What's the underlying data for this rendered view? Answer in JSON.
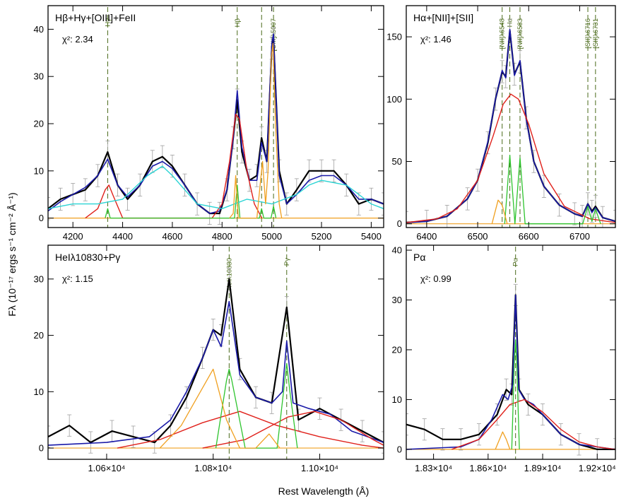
{
  "figure": {
    "xlabel": "Rest Wavelength (Å)",
    "ylabel": "Fλ  (10⁻¹⁷ ergs s⁻¹ cm⁻² Å⁻¹)"
  },
  "colors": {
    "data": "#000000",
    "errorbars": "#a0a0a0",
    "total_model": "#1a1aa8",
    "broad": "#e0201a",
    "narrow": "#2ec42e",
    "feii": "#2ad4d4",
    "oiii_wing": "#f0a020",
    "marker": "#4a6a1a"
  },
  "chart_data": [
    {
      "type": "line",
      "title": "Hβ+Hγ+[OIII]+FeII",
      "chi2_label": "χ²: 2.34",
      "xlim": [
        4100,
        5450
      ],
      "ylim": [
        -2,
        45
      ],
      "xticks": [
        4200,
        4400,
        4600,
        4800,
        5000,
        5200,
        5400
      ],
      "xtick_labels": [
        "4200",
        "4400",
        "4600",
        "4800",
        "5000",
        "5200",
        "5400"
      ],
      "yticks": [
        0,
        10,
        20,
        30,
        40
      ],
      "ytick_labels": [
        "0",
        "10",
        "20",
        "30",
        "40"
      ],
      "markers": [
        {
          "x": 4340,
          "label": "Hγ"
        },
        {
          "x": 4861,
          "label": "Hβ"
        },
        {
          "x": 4959,
          "label": ""
        },
        {
          "x": 5007,
          "label": "[OIII]λ5007"
        }
      ],
      "series": [
        {
          "role": "data",
          "x": [
            4100,
            4150,
            4200,
            4250,
            4300,
            4340,
            4380,
            4420,
            4470,
            4520,
            4560,
            4600,
            4650,
            4700,
            4750,
            4790,
            4820,
            4845,
            4861,
            4880,
            4910,
            4940,
            4959,
            4980,
            5000,
            5007,
            5030,
            5060,
            5100,
            5150,
            5200,
            5250,
            5300,
            5350,
            5400,
            5450
          ],
          "values": [
            2,
            4,
            5,
            6,
            9,
            14,
            7,
            4,
            7,
            12,
            13,
            11,
            7,
            3,
            1,
            1,
            6,
            17,
            25,
            14,
            8,
            9,
            17,
            12,
            36,
            38,
            10,
            3,
            6,
            10,
            10,
            10,
            7,
            3,
            4,
            3
          ]
        },
        {
          "role": "total",
          "x": [
            4100,
            4150,
            4200,
            4250,
            4300,
            4340,
            4380,
            4420,
            4470,
            4520,
            4560,
            4600,
            4650,
            4700,
            4750,
            4790,
            4820,
            4845,
            4861,
            4880,
            4910,
            4940,
            4959,
            4980,
            5000,
            5007,
            5030,
            5060,
            5100,
            5150,
            5200,
            5250,
            5300,
            5350,
            5400,
            5450
          ],
          "values": [
            1.5,
            3.5,
            5,
            6.5,
            9,
            12.5,
            7,
            4.5,
            7,
            11,
            12,
            10.5,
            7,
            3,
            1,
            1.5,
            6,
            17,
            27,
            15,
            8,
            8,
            16,
            12,
            37,
            39,
            9,
            3,
            5,
            8,
            9,
            9,
            7,
            4,
            4,
            3
          ]
        },
        {
          "role": "broad",
          "x": [
            4250,
            4300,
            4330,
            4345,
            4360,
            4400,
            4760,
            4800,
            4830,
            4855,
            4870,
            4900,
            4930,
            4960
          ],
          "values": [
            0,
            2,
            6,
            7,
            5,
            0,
            0,
            3,
            12,
            22,
            21,
            10,
            3,
            0
          ]
        },
        {
          "role": "narrow",
          "x": [
            4330,
            4340,
            4350,
            4850,
            4861,
            4872,
            4950,
            4959,
            4968,
            4997,
            5007,
            5017
          ],
          "values": [
            0,
            2,
            0,
            0,
            7,
            0,
            0,
            2,
            0,
            0,
            2.5,
            0
          ]
        },
        {
          "role": "feii",
          "x": [
            4100,
            4200,
            4300,
            4400,
            4500,
            4560,
            4600,
            4700,
            4800,
            4900,
            5000,
            5100,
            5150,
            5200,
            5300,
            5400,
            5450
          ],
          "values": [
            2,
            3,
            3,
            4,
            9,
            11,
            9,
            3,
            2,
            4,
            3,
            5,
            7,
            8,
            7,
            3,
            2
          ]
        },
        {
          "role": "oiii_wing",
          "x": [
            4830,
            4845,
            4855,
            4865,
            4940,
            4955,
            4963,
            4975,
            4985,
            4998,
            5005,
            5015,
            5030,
            5040
          ],
          "values": [
            0,
            1,
            9,
            0,
            0,
            8,
            12,
            3,
            10,
            34,
            37,
            20,
            3,
            0
          ]
        }
      ]
    },
    {
      "type": "line",
      "title": "Hα+[NII]+[SII]",
      "chi2_label": "χ²: 1.46",
      "xlim": [
        6360,
        6770
      ],
      "ylim": [
        -3,
        175
      ],
      "xticks": [
        6400,
        6500,
        6600,
        6700
      ],
      "xtick_labels": [
        "6400",
        "6500",
        "6600",
        "6700"
      ],
      "yticks": [
        0,
        50,
        100,
        150
      ],
      "ytick_labels": [
        "0",
        "50",
        "100",
        "150"
      ],
      "markers": [
        {
          "x": 6548,
          "label": "[NII]λ6548"
        },
        {
          "x": 6563,
          "label": "Hα"
        },
        {
          "x": 6583,
          "label": "[NII]λ6583"
        },
        {
          "x": 6716,
          "label": "[SII]λ6716"
        },
        {
          "x": 6731,
          "label": "[SII]λ6731"
        }
      ],
      "series": [
        {
          "role": "data",
          "x": [
            6360,
            6400,
            6440,
            6480,
            6500,
            6520,
            6535,
            6548,
            6555,
            6563,
            6572,
            6583,
            6595,
            6610,
            6630,
            6660,
            6690,
            6705,
            6716,
            6724,
            6731,
            6745,
            6770
          ],
          "values": [
            1,
            2,
            6,
            20,
            35,
            65,
            100,
            122,
            118,
            155,
            120,
            130,
            85,
            50,
            30,
            15,
            8,
            6,
            16,
            10,
            14,
            5,
            2
          ]
        },
        {
          "role": "total",
          "x": [
            6360,
            6400,
            6440,
            6480,
            6500,
            6520,
            6535,
            6548,
            6555,
            6563,
            6572,
            6583,
            6595,
            6610,
            6630,
            6660,
            6690,
            6705,
            6716,
            6724,
            6731,
            6745,
            6770
          ],
          "values": [
            1,
            2,
            6,
            20,
            35,
            66,
            100,
            123,
            117,
            156,
            119,
            131,
            84,
            50,
            30,
            15,
            8,
            6,
            16,
            9,
            13,
            5,
            2
          ]
        },
        {
          "role": "broad",
          "x": [
            6360,
            6420,
            6460,
            6500,
            6530,
            6550,
            6565,
            6580,
            6600,
            6630,
            6670,
            6720,
            6770
          ],
          "values": [
            1,
            4,
            12,
            35,
            70,
            96,
            104,
            100,
            80,
            40,
            14,
            4,
            1
          ]
        },
        {
          "role": "narrow",
          "x": [
            6553,
            6563,
            6573,
            6573,
            6583,
            6593,
            6706,
            6716,
            6724,
            6731,
            6741
          ],
          "values": [
            0,
            55,
            0,
            0,
            53,
            0,
            0,
            14,
            2,
            12,
            0
          ]
        },
        {
          "role": "oiii_wing",
          "x": [
            6528,
            6540,
            6548,
            6558
          ],
          "values": [
            0,
            19,
            15,
            0
          ]
        }
      ]
    },
    {
      "type": "line",
      "title": "HeIλ10830+Pγ",
      "chi2_label": "χ²: 1.15",
      "xlim": [
        10490,
        11120
      ],
      "ylim": [
        -2,
        36
      ],
      "xticks": [
        10600,
        10800,
        11000
      ],
      "xtick_labels": [
        "1.06×10⁴",
        "1.08×10⁴",
        "1.10×10⁴"
      ],
      "yticks": [
        0,
        10,
        20,
        30
      ],
      "ytick_labels": [
        "0",
        "10",
        "20",
        "30"
      ],
      "markers": [
        {
          "x": 10830,
          "label": "HeIλ10830"
        },
        {
          "x": 10938,
          "label": "Pγ"
        }
      ],
      "series": [
        {
          "role": "data",
          "x": [
            10490,
            10530,
            10570,
            10610,
            10650,
            10690,
            10720,
            10750,
            10780,
            10800,
            10815,
            10830,
            10850,
            10880,
            10910,
            10938,
            10960,
            11000,
            11040,
            11080,
            11120
          ],
          "values": [
            2,
            4,
            1,
            3,
            2,
            1,
            4,
            9,
            16,
            21,
            20,
            30,
            14,
            9,
            8,
            25,
            5,
            7,
            5,
            3,
            1
          ]
        },
        {
          "role": "total",
          "x": [
            10490,
            10600,
            10680,
            10720,
            10750,
            10780,
            10800,
            10815,
            10830,
            10850,
            10880,
            10910,
            10930,
            10938,
            10950,
            10980,
            11020,
            11060,
            11120
          ],
          "values": [
            0.5,
            1,
            2,
            5,
            10,
            16,
            21,
            18,
            26,
            13,
            9,
            8,
            10,
            19,
            8,
            7,
            6,
            3,
            1
          ]
        },
        {
          "role": "broad",
          "x": [
            10620,
            10700,
            10780,
            10850,
            10920,
            11000,
            11080,
            11120
          ],
          "values": [
            0,
            1.5,
            4.5,
            6.5,
            4,
            2,
            0.5,
            0
          ]
        },
        {
          "role": "broad",
          "x": [
            10780,
            10860,
            10940,
            10990,
            11040,
            11100,
            11120
          ],
          "values": [
            0,
            1.5,
            5.5,
            6.5,
            5,
            1.5,
            0.5
          ]
        },
        {
          "role": "narrow",
          "x": [
            10805,
            10825,
            10830,
            10835,
            10860,
            10920,
            10932,
            10938,
            10944,
            10958
          ],
          "values": [
            0,
            12,
            14,
            12,
            0,
            0,
            10,
            15,
            10,
            0
          ]
        },
        {
          "role": "oiii_wing",
          "x": [
            10700,
            10740,
            10770,
            10800,
            10825,
            10850,
            10880,
            10905,
            10925
          ],
          "values": [
            0,
            4,
            9,
            14,
            5,
            0,
            0,
            2.5,
            0
          ]
        }
      ]
    },
    {
      "type": "line",
      "title": "Pα",
      "chi2_label": "χ²: 0.99",
      "xlim": [
        18150,
        19300
      ],
      "ylim": [
        -2,
        41
      ],
      "xticks": [
        18300,
        18600,
        18900,
        19200
      ],
      "xtick_labels": [
        "1.83×10⁴",
        "1.86×10⁴",
        "1.89×10⁴",
        "1.92×10⁴"
      ],
      "yticks": [
        0,
        10,
        20,
        30,
        40
      ],
      "ytick_labels": [
        "0",
        "10",
        "20",
        "30",
        "40"
      ],
      "markers": [
        {
          "x": 18751,
          "label": "Pα"
        }
      ],
      "series": [
        {
          "role": "data",
          "x": [
            18150,
            18250,
            18350,
            18450,
            18550,
            18650,
            18700,
            18730,
            18751,
            18770,
            18820,
            18900,
            19000,
            19100,
            19200,
            19300
          ],
          "values": [
            5,
            4,
            2,
            2,
            3,
            7,
            12,
            11,
            31,
            12,
            9,
            7,
            3,
            1,
            0,
            0
          ]
        },
        {
          "role": "total",
          "x": [
            18150,
            18450,
            18550,
            18620,
            18680,
            18710,
            18735,
            18751,
            18768,
            18800,
            18850,
            18900,
            19000,
            19100,
            19300
          ],
          "values": [
            0,
            0.5,
            2,
            6,
            11,
            10,
            13,
            31,
            12,
            10,
            9,
            7,
            3,
            1,
            0
          ]
        },
        {
          "role": "broad",
          "x": [
            18400,
            18550,
            18650,
            18720,
            18800,
            18900,
            19000,
            19100,
            19200,
            19300
          ],
          "values": [
            0,
            2,
            6,
            9,
            10,
            7.5,
            4,
            1.5,
            0.5,
            0
          ]
        },
        {
          "role": "narrow",
          "x": [
            18730,
            18745,
            18751,
            18757,
            18772
          ],
          "values": [
            0,
            18,
            22,
            18,
            0
          ]
        },
        {
          "role": "oiii_wing",
          "x": [
            18640,
            18680,
            18700,
            18720
          ],
          "values": [
            0,
            3.5,
            2,
            0
          ]
        }
      ]
    }
  ]
}
